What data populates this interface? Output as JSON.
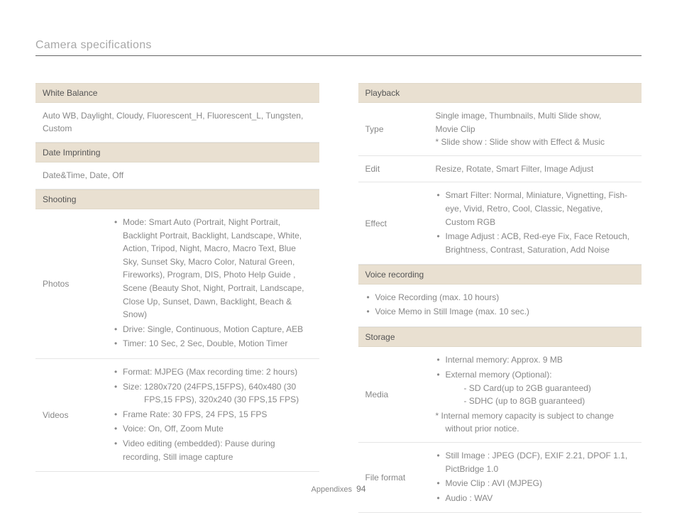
{
  "page": {
    "title": "Camera specifications",
    "footer_label": "Appendixes",
    "footer_page": "94"
  },
  "colors": {
    "header_bg": "#e9e0d1",
    "text_muted": "#888888",
    "rule": "#e5e5e5"
  },
  "left": {
    "white_balance": {
      "header": "White Balance",
      "body": "Auto WB, Daylight, Cloudy, Fluorescent_H, Fluorescent_L, Tungsten, Custom"
    },
    "date_imprinting": {
      "header": "Date Imprinting",
      "body": "Date&Time, Date, Off"
    },
    "shooting": {
      "header": "Shooting",
      "photos": {
        "label": "Photos",
        "mode": "Mode: Smart Auto (Portrait, Night Portrait, Backlight Portrait, Backlight, Landscape, White, Action, Tripod, Night, Macro, Macro Text, Blue Sky, Sunset Sky, Macro Color, Natural Green, Fireworks), Program, DIS, Photo Help Guide , Scene (Beauty Shot, Night, Portrait, Landscape, Close Up, Sunset, Dawn, Backlight, Beach & Snow)",
        "drive": "Drive: Single, Continuous, Motion Capture, AEB",
        "timer": "Timer: 10 Sec, 2 Sec, Double, Motion Timer"
      },
      "videos": {
        "label": "Videos",
        "format": "Format: MJPEG (Max recording time: 2 hours)",
        "size_main": "Size: 1280x720 (24FPS,15FPS), 640x480 (30",
        "size_cont": "FPS,15 FPS), 320x240 (30 FPS,15 FPS)",
        "frame_rate": "Frame Rate: 30 FPS, 24 FPS, 15 FPS",
        "voice": "Voice: On, Off, Zoom Mute",
        "editing": "Video editing (embedded): Pause during recording, Still image capture"
      }
    }
  },
  "right": {
    "playback": {
      "header": "Playback",
      "type": {
        "label": "Type",
        "l1": "Single image, Thumbnails, Multi Slide show,",
        "l2": "Movie Clip",
        "l3": "*  Slide show : Slide show with Effect & Music"
      },
      "edit": {
        "label": "Edit",
        "body": "Resize, Rotate, Smart Filter, Image Adjust"
      },
      "effect": {
        "label": "Effect",
        "b1": "Smart Filter: Normal, Miniature, Vignetting, Fish-eye, Vivid,  Retro, Cool, Classic, Negative, Custom RGB",
        "b2": "Image Adjust : ACB, Red-eye Fix, Face Retouch, Brightness, Contrast, Saturation, Add Noise"
      }
    },
    "voice": {
      "header": "Voice recording",
      "b1": "Voice Recording (max. 10 hours)",
      "b2": "Voice Memo in Still Image (max. 10 sec.)"
    },
    "storage": {
      "header": "Storage",
      "media": {
        "label": "Media",
        "b1": "Internal memory: Approx. 9 MB",
        "b2": "External memory (Optional):",
        "d1": "-  SD Card(up to 2GB guaranteed)",
        "d2": "-  SDHC (up to 8GB guaranteed)",
        "note1": "* Internal memory capacity is subject to change",
        "note2": "without prior notice."
      },
      "file_format": {
        "label": "File format",
        "b1": "Still Image : JPEG (DCF), EXIF 2.21, DPOF 1.1, PictBridge 1.0",
        "b2": "Movie Clip : AVI (MJPEG)",
        "b3": "Audio : WAV"
      }
    }
  }
}
